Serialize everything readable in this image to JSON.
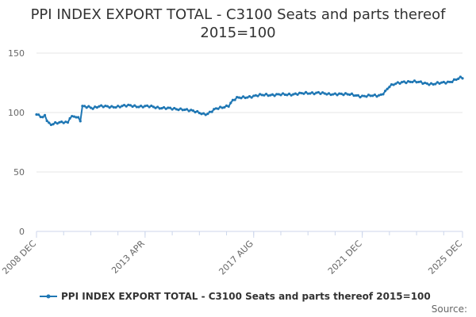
{
  "chart_data": {
    "type": "line",
    "title": "PPI INDEX EXPORT TOTAL - C3100 Seats and parts thereof",
    "subtitle": "2015=100",
    "xlabel": "",
    "ylabel": "",
    "ylim": [
      0,
      150
    ],
    "yticks": [
      0,
      50,
      100,
      150
    ],
    "grid": true,
    "x_tick_labels": [
      "2008 DEC",
      "2013 APR",
      "2017 AUG",
      "2021 DEC",
      "2025 DEC"
    ],
    "x_tick_index": [
      0,
      52,
      104,
      156,
      204
    ],
    "legend_position": "bottom",
    "series": [
      {
        "name": "PPI INDEX EXPORT TOTAL - C3100 Seats and parts thereof 2015=100",
        "color": "#1f77b4",
        "anchors": [
          [
            0,
            98
          ],
          [
            2,
            97
          ],
          [
            3,
            96
          ],
          [
            4,
            98
          ],
          [
            5,
            94
          ],
          [
            6,
            91
          ],
          [
            7,
            90
          ],
          [
            10,
            91
          ],
          [
            13,
            92
          ],
          [
            15,
            92
          ],
          [
            16,
            96
          ],
          [
            18,
            97
          ],
          [
            19,
            96
          ],
          [
            20,
            95
          ],
          [
            21,
            93
          ],
          [
            22,
            105
          ],
          [
            25,
            105
          ],
          [
            27,
            104
          ],
          [
            30,
            105
          ],
          [
            35,
            105
          ],
          [
            40,
            105
          ],
          [
            45,
            106
          ],
          [
            50,
            105
          ],
          [
            55,
            105
          ],
          [
            60,
            104
          ],
          [
            65,
            103
          ],
          [
            70,
            103
          ],
          [
            75,
            101
          ],
          [
            78,
            100
          ],
          [
            80,
            99
          ],
          [
            82,
            99
          ],
          [
            84,
            101
          ],
          [
            86,
            103
          ],
          [
            88,
            104
          ],
          [
            90,
            105
          ],
          [
            92,
            106
          ],
          [
            94,
            110
          ],
          [
            96,
            112
          ],
          [
            100,
            113
          ],
          [
            105,
            114
          ],
          [
            110,
            115
          ],
          [
            115,
            115
          ],
          [
            120,
            115
          ],
          [
            125,
            116
          ],
          [
            130,
            116
          ],
          [
            135,
            117
          ],
          [
            140,
            115
          ],
          [
            145,
            116
          ],
          [
            150,
            115
          ],
          [
            155,
            114
          ],
          [
            160,
            114
          ],
          [
            163,
            114
          ],
          [
            165,
            115
          ],
          [
            167,
            118
          ],
          [
            169,
            122
          ],
          [
            172,
            124
          ],
          [
            176,
            126
          ],
          [
            180,
            126
          ],
          [
            185,
            125
          ],
          [
            190,
            124
          ],
          [
            195,
            125
          ],
          [
            198,
            126
          ],
          [
            201,
            128
          ],
          [
            203,
            129
          ],
          [
            204,
            129
          ]
        ]
      }
    ]
  },
  "source_label": "Source:"
}
